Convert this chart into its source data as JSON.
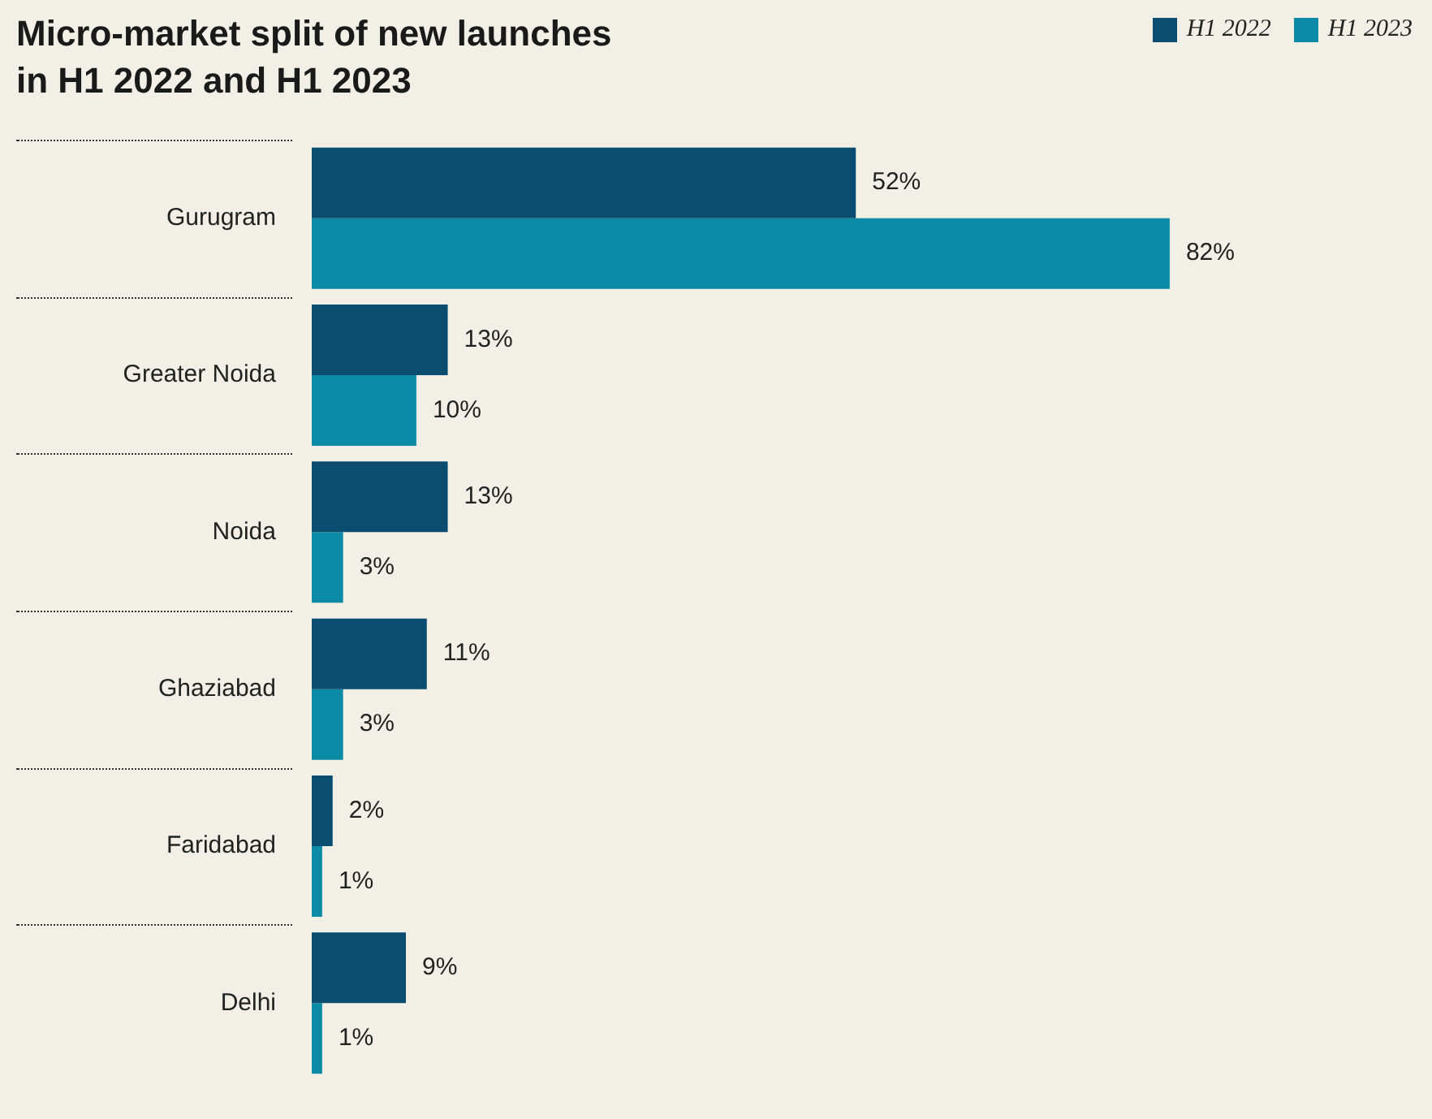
{
  "chart_data": {
    "type": "bar",
    "orientation": "horizontal",
    "title": "Micro-market split of new launches\nin H1 2022 and H1 2023",
    "categories": [
      "Gurugram",
      "Greater Noida",
      "Noida",
      "Ghaziabad",
      "Faridabad",
      "Delhi"
    ],
    "series": [
      {
        "name": "H1 2022",
        "color": "#0b4d70",
        "values": [
          52,
          13,
          13,
          11,
          2,
          9
        ],
        "value_labels": [
          "52%",
          "13%",
          "13%",
          "11%",
          "2%",
          "9%"
        ]
      },
      {
        "name": "H1 2023",
        "color": "#0b8aa5",
        "values": [
          82,
          10,
          3,
          3,
          1,
          1
        ],
        "value_labels": [
          "82%",
          "10%",
          "3%",
          "3%",
          "1%",
          "1%"
        ]
      }
    ],
    "tick_labels": "y",
    "legend": "top right"
  }
}
